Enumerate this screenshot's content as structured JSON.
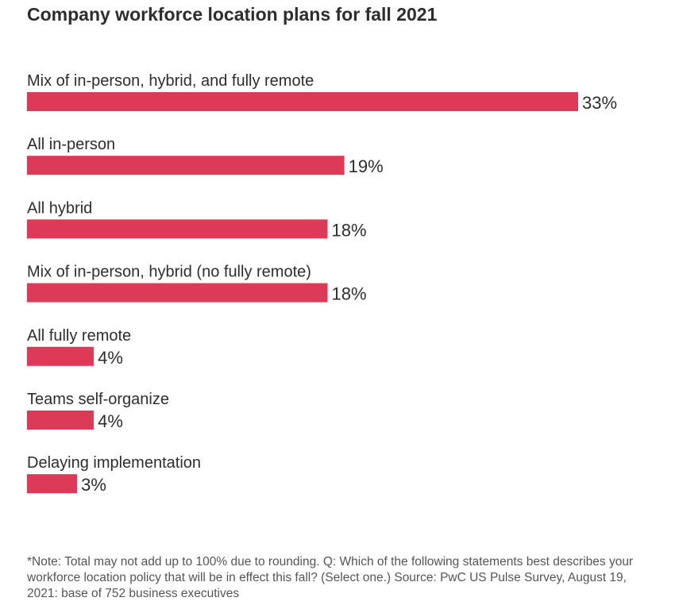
{
  "chart_data": {
    "type": "bar",
    "orientation": "horizontal",
    "title": "Company workforce location plans for fall 2021",
    "categories": [
      "Mix of in-person, hybrid, and fully remote",
      "All in-person",
      "All hybrid",
      "Mix of in-person, hybrid (no fully remote)",
      "All fully remote",
      "Teams self-organize",
      "Delaying implementation"
    ],
    "values": [
      33,
      19,
      18,
      18,
      4,
      4,
      3
    ],
    "value_labels": [
      "33%",
      "19%",
      "18%",
      "18%",
      "4%",
      "4%",
      "3%"
    ],
    "unit": "%",
    "xlim": [
      0,
      33
    ],
    "grid": false,
    "legend": "none",
    "bar_color": "#dc3a57",
    "note": "*Note: Total may not add up to 100% due to rounding. Q: Which of the following statements best describes your workforce location policy that will be in effect this fall? (Select one.) Source: PwC US Pulse Survey, August 19, 2021: base of 752 business executives"
  }
}
